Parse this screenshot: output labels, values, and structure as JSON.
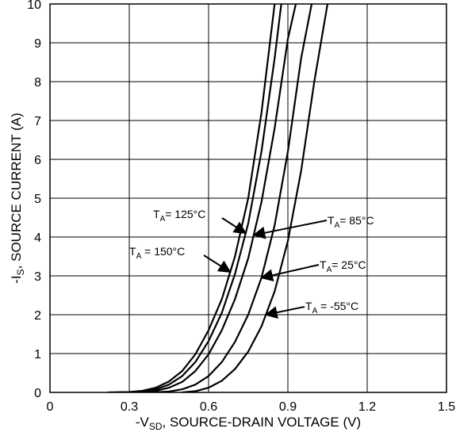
{
  "chart_data": {
    "type": "line",
    "xlabel": "-V_SD, SOURCE-DRAIN VOLTAGE (V)",
    "ylabel": "-I_S, SOURCE CURRENT (A)",
    "xlabel_parts": [
      "-V",
      "SD",
      ", SOURCE-DRAIN VOLTAGE (V)"
    ],
    "ylabel_parts": [
      "-I",
      "S",
      ", SOURCE CURRENT (A)"
    ],
    "xlim": [
      0,
      1.5
    ],
    "ylim": [
      0,
      10
    ],
    "xticks": [
      "0",
      "0.3",
      "0.6",
      "0.9",
      "1.2",
      "1.5"
    ],
    "yticks": [
      "0",
      "1",
      "2",
      "3",
      "4",
      "5",
      "6",
      "7",
      "8",
      "9",
      "10"
    ],
    "grid": true,
    "series": [
      {
        "name": "T_A = 150°C",
        "label_parts": [
          "T",
          "A",
          " = 150°C"
        ],
        "x": [
          0.22,
          0.3,
          0.35,
          0.4,
          0.45,
          0.5,
          0.55,
          0.6,
          0.65,
          0.7,
          0.75,
          0.8,
          0.85
        ],
        "y": [
          0.0,
          0.01,
          0.04,
          0.12,
          0.28,
          0.55,
          0.98,
          1.6,
          2.4,
          3.5,
          5.0,
          7.2,
          10.0
        ]
      },
      {
        "name": "T_A = 125°C",
        "label_parts": [
          "T",
          "A",
          "= 125°C"
        ],
        "x": [
          0.25,
          0.3,
          0.35,
          0.4,
          0.45,
          0.5,
          0.55,
          0.6,
          0.65,
          0.7,
          0.75,
          0.8,
          0.85,
          0.875
        ],
        "y": [
          0.0,
          0.005,
          0.02,
          0.08,
          0.2,
          0.42,
          0.78,
          1.32,
          2.05,
          3.05,
          4.35,
          6.2,
          8.6,
          10.0
        ]
      },
      {
        "name": "T_A = 85°C",
        "label_parts": [
          "T",
          "A",
          "= 85°C"
        ],
        "x": [
          0.3,
          0.35,
          0.4,
          0.45,
          0.5,
          0.55,
          0.6,
          0.65,
          0.7,
          0.75,
          0.8,
          0.85,
          0.9,
          0.93
        ],
        "y": [
          0.0,
          0.01,
          0.04,
          0.12,
          0.27,
          0.55,
          0.98,
          1.6,
          2.4,
          3.45,
          4.9,
          6.8,
          9.1,
          10.0
        ]
      },
      {
        "name": "T_A = 25°C",
        "label_parts": [
          "T",
          "A",
          "= 25°C"
        ],
        "x": [
          0.38,
          0.45,
          0.5,
          0.55,
          0.6,
          0.65,
          0.7,
          0.75,
          0.8,
          0.85,
          0.9,
          0.95,
          0.99
        ],
        "y": [
          0.0,
          0.02,
          0.08,
          0.2,
          0.42,
          0.78,
          1.3,
          2.0,
          2.95,
          4.3,
          6.2,
          8.6,
          10.0
        ]
      },
      {
        "name": "T_A = -55°C",
        "label_parts": [
          "T",
          "A",
          " = -55°C"
        ],
        "x": [
          0.5,
          0.55,
          0.6,
          0.65,
          0.7,
          0.75,
          0.8,
          0.85,
          0.9,
          0.95,
          1.0,
          1.05
        ],
        "y": [
          0.0,
          0.03,
          0.12,
          0.3,
          0.6,
          1.05,
          1.7,
          2.6,
          3.9,
          5.7,
          8.0,
          10.0
        ]
      }
    ]
  }
}
